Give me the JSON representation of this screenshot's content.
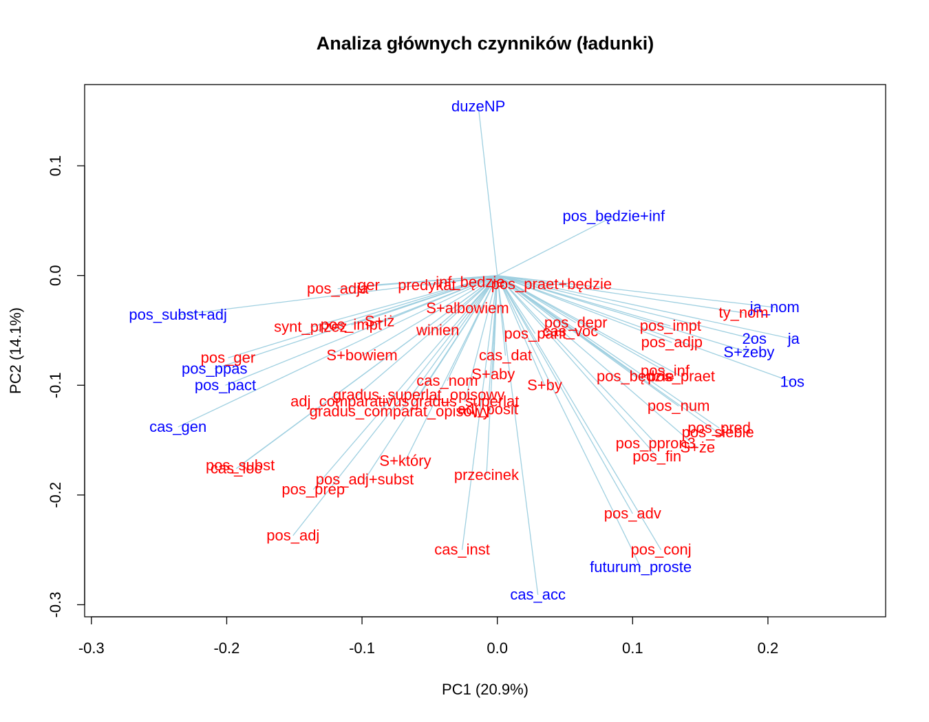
{
  "chart_data": {
    "type": "scatter",
    "title": "Analiza głównych czynników (ładunki)",
    "xlabel": "PC1 (20.9%)",
    "ylabel": "PC2 (14.1%)",
    "xlim": [
      -0.305,
      0.287
    ],
    "ylim": [
      -0.311,
      0.174
    ],
    "x_ticks": [
      -0.3,
      -0.2,
      -0.1,
      0.0,
      0.1,
      0.2
    ],
    "x_tick_labels": [
      "-0.3",
      "-0.2",
      "-0.1",
      "0.0",
      "0.1",
      "0.2"
    ],
    "y_ticks": [
      -0.3,
      -0.2,
      -0.1,
      0.0,
      0.1
    ],
    "y_tick_labels": [
      "-0.3",
      "-0.2",
      "-0.1",
      "0.0",
      "0.1"
    ],
    "grid": false,
    "colors": {
      "arrow": "#9ecfe0",
      "group_red": "#ff0000",
      "group_blue": "#0000ff",
      "frame": "#000000"
    },
    "points": [
      {
        "label": "duzeNP",
        "x": -0.014,
        "y": 0.154,
        "group": "blue"
      },
      {
        "label": "pos_będzie+inf",
        "x": 0.086,
        "y": 0.054,
        "group": "blue"
      },
      {
        "label": "ja_nom",
        "x": 0.205,
        "y": -0.029,
        "group": "blue"
      },
      {
        "label": "ja",
        "x": 0.219,
        "y": -0.058,
        "group": "blue"
      },
      {
        "label": "2os",
        "x": 0.19,
        "y": -0.058,
        "group": "blue"
      },
      {
        "label": "S+żeby",
        "x": 0.186,
        "y": -0.07,
        "group": "blue"
      },
      {
        "label": "1os",
        "x": 0.218,
        "y": -0.097,
        "group": "blue"
      },
      {
        "label": "pos_subst+adj",
        "x": -0.236,
        "y": -0.036,
        "group": "blue"
      },
      {
        "label": "pos_ppas",
        "x": -0.209,
        "y": -0.085,
        "group": "blue"
      },
      {
        "label": "pos_pact",
        "x": -0.201,
        "y": -0.1,
        "group": "blue"
      },
      {
        "label": "cas_gen",
        "x": -0.236,
        "y": -0.138,
        "group": "blue"
      },
      {
        "label": "cas_acc",
        "x": 0.03,
        "y": -0.291,
        "group": "blue"
      },
      {
        "label": "futurum_proste",
        "x": 0.106,
        "y": -0.266,
        "group": "blue"
      },
      {
        "label": "pos_adja",
        "x": -0.118,
        "y": -0.012,
        "group": "red"
      },
      {
        "label": "ger",
        "x": -0.095,
        "y": -0.009,
        "group": "red"
      },
      {
        "label": "predykat",
        "x": -0.052,
        "y": -0.009,
        "group": "red"
      },
      {
        "label": "inf_będzie",
        "x": -0.02,
        "y": -0.006,
        "group": "red"
      },
      {
        "label": "pos_praet+będzie",
        "x": 0.04,
        "y": -0.008,
        "group": "red"
      },
      {
        "label": "ty_nom",
        "x": 0.182,
        "y": -0.034,
        "group": "red"
      },
      {
        "label": "S+albowiem",
        "x": -0.022,
        "y": -0.03,
        "group": "red"
      },
      {
        "label": "S+iż",
        "x": -0.087,
        "y": -0.042,
        "group": "red"
      },
      {
        "label": "synt_przez",
        "x": -0.138,
        "y": -0.047,
        "group": "red"
      },
      {
        "label": "pos_impt",
        "x": -0.108,
        "y": -0.045,
        "group": "red"
      },
      {
        "label": "winien",
        "x": -0.044,
        "y": -0.05,
        "group": "red"
      },
      {
        "label": "pos_depr",
        "x": 0.058,
        "y": -0.043,
        "group": "red"
      },
      {
        "label": "cas_voc",
        "x": 0.054,
        "y": -0.051,
        "group": "red"
      },
      {
        "label": "pos_pant",
        "x": 0.028,
        "y": -0.053,
        "group": "red"
      },
      {
        "label": "pos_impt",
        "x": 0.128,
        "y": -0.046,
        "group": "red"
      },
      {
        "label": "pos_adjp",
        "x": 0.129,
        "y": -0.061,
        "group": "red"
      },
      {
        "label": "pos_ger",
        "x": -0.199,
        "y": -0.075,
        "group": "red"
      },
      {
        "label": "S+bowiem",
        "x": -0.1,
        "y": -0.073,
        "group": "red"
      },
      {
        "label": "cas_dat",
        "x": 0.006,
        "y": -0.073,
        "group": "red"
      },
      {
        "label": "S+aby",
        "x": -0.003,
        "y": -0.09,
        "group": "red"
      },
      {
        "label": "cas_nom",
        "x": -0.037,
        "y": -0.096,
        "group": "red"
      },
      {
        "label": "S+by",
        "x": 0.035,
        "y": -0.1,
        "group": "red"
      },
      {
        "label": "pos_będzie",
        "x": 0.102,
        "y": -0.092,
        "group": "red"
      },
      {
        "label": "pos_inf",
        "x": 0.124,
        "y": -0.087,
        "group": "red"
      },
      {
        "label": "pos_praet",
        "x": 0.136,
        "y": -0.092,
        "group": "red"
      },
      {
        "label": "gradus_superlat_opisowy",
        "x": -0.058,
        "y": -0.109,
        "group": "red"
      },
      {
        "label": "adj_comparativus",
        "x": -0.109,
        "y": -0.115,
        "group": "red"
      },
      {
        "label": "gradus_superlat",
        "x": -0.024,
        "y": -0.115,
        "group": "red"
      },
      {
        "label": "gradus_comparat_opisowy",
        "x": -0.072,
        "y": -0.124,
        "group": "red"
      },
      {
        "label": "adj_posit",
        "x": -0.007,
        "y": -0.122,
        "group": "red"
      },
      {
        "label": "pos_num",
        "x": 0.134,
        "y": -0.119,
        "group": "red"
      },
      {
        "label": "pos_pred",
        "x": 0.164,
        "y": -0.139,
        "group": "red"
      },
      {
        "label": "pos_siebie",
        "x": 0.163,
        "y": -0.143,
        "group": "red"
      },
      {
        "label": "pos_ppron3",
        "x": 0.117,
        "y": -0.153,
        "group": "red"
      },
      {
        "label": "S+że",
        "x": 0.148,
        "y": -0.157,
        "group": "red"
      },
      {
        "label": "pos_fin",
        "x": 0.118,
        "y": -0.165,
        "group": "red"
      },
      {
        "label": "pos_subst",
        "x": -0.19,
        "y": -0.173,
        "group": "red"
      },
      {
        "label": "cas_loc",
        "x": -0.193,
        "y": -0.176,
        "group": "red"
      },
      {
        "label": "S+który",
        "x": -0.068,
        "y": -0.169,
        "group": "red"
      },
      {
        "label": "przecinek",
        "x": -0.008,
        "y": -0.182,
        "group": "red"
      },
      {
        "label": "pos_adj+subst",
        "x": -0.098,
        "y": -0.186,
        "group": "red"
      },
      {
        "label": "pos_prep",
        "x": -0.136,
        "y": -0.195,
        "group": "red"
      },
      {
        "label": "pos_adj",
        "x": -0.151,
        "y": -0.237,
        "group": "red"
      },
      {
        "label": "cas_inst",
        "x": -0.026,
        "y": -0.25,
        "group": "red"
      },
      {
        "label": "pos_adv",
        "x": 0.1,
        "y": -0.217,
        "group": "red"
      },
      {
        "label": "pos_conj",
        "x": 0.121,
        "y": -0.25,
        "group": "red"
      }
    ]
  }
}
